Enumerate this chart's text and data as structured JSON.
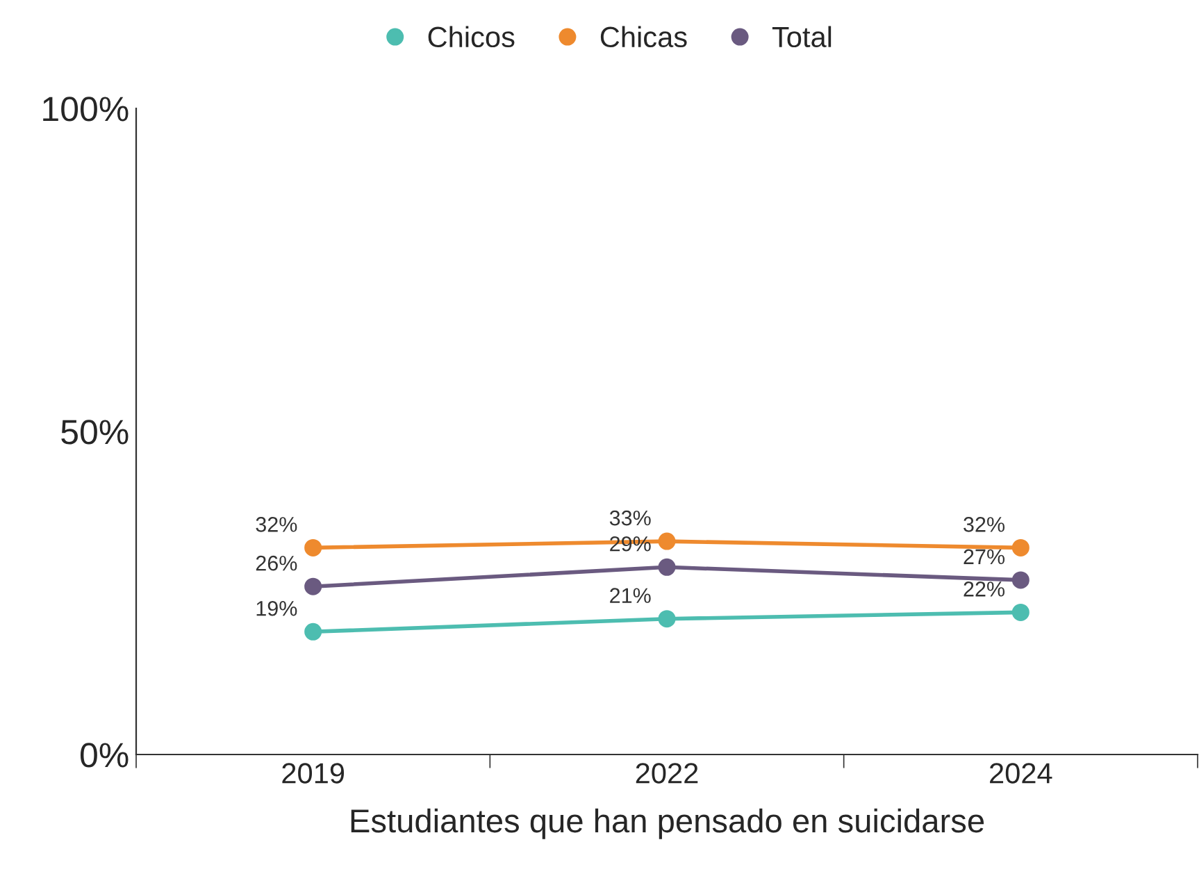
{
  "chart_data": {
    "type": "line",
    "xlabel": "Estudiantes que han pensado en suicidarse",
    "categories": [
      "2019",
      "2022",
      "2024"
    ],
    "series": [
      {
        "name": "Chicos",
        "color": "#4dbdb0",
        "values": [
          19,
          21,
          22
        ],
        "value_labels": [
          "19%",
          "21%",
          "22%"
        ]
      },
      {
        "name": "Chicas",
        "color": "#ee8a2e",
        "values": [
          32,
          33,
          32
        ],
        "value_labels": [
          "32%",
          "33%",
          "32%"
        ]
      },
      {
        "name": "Total",
        "color": "#6a5a80",
        "values": [
          26,
          29,
          27
        ],
        "value_labels": [
          "26%",
          "29%",
          "27%"
        ]
      }
    ],
    "ylim": [
      0,
      100
    ],
    "yticks": [
      {
        "value": 0,
        "label": "0%"
      },
      {
        "value": 50,
        "label": "50%"
      },
      {
        "value": 100,
        "label": "100%"
      }
    ],
    "grid": false,
    "legend": "top",
    "marker": "circle",
    "line_style": "solid"
  }
}
